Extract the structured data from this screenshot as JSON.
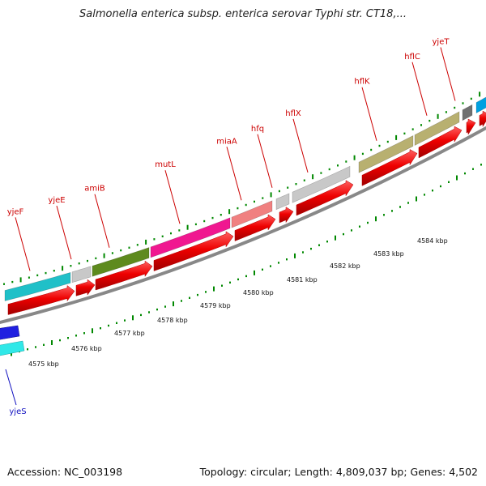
{
  "title": "Salmonella enterica subsp. enterica serovar Typhi str. CT18,...",
  "footer": {
    "accession": "Accession: NC_003198",
    "summary": "Topology: circular; Length: 4,809,037 bp; Genes: 4,502"
  },
  "colors": {
    "cds": "#ee0000",
    "backbone": "#888888",
    "tick": "#008800",
    "label_red": "#cc0000",
    "label_blue": "#1010c0"
  },
  "upper_track": {
    "genes": [
      {
        "label": "yjeF",
        "color": "#20c0c8"
      },
      {
        "label": "yjeE",
        "color": "#c8c8c8"
      },
      {
        "label": "amiB",
        "color": "#5e8a1e"
      },
      {
        "label": "mutL",
        "color": "#f01890"
      },
      {
        "label": "miaA",
        "color": "#f08080"
      },
      {
        "label": "hfq",
        "color": "#c8c8c8"
      },
      {
        "label": "hflX",
        "color": "#c8c8c8"
      },
      {
        "label": "hflK",
        "color": "#b8b070"
      },
      {
        "label": "hflC",
        "color": "#b8b070"
      },
      {
        "label": "yjeT",
        "color": "#707070"
      },
      {
        "label": "",
        "color": "#00a0e0"
      }
    ]
  },
  "lower_track": {
    "genes": [
      {
        "label": "yjeS",
        "color": "#2020e0"
      },
      {
        "label": "",
        "color": "#30e8e8"
      }
    ]
  },
  "scale": {
    "labels": [
      "4575 kbp",
      "4576 kbp",
      "4577 kbp",
      "4578 kbp",
      "4579 kbp",
      "4580 kbp",
      "4581 kbp",
      "4582 kbp",
      "4583 kbp",
      "4584 kbp"
    ]
  }
}
